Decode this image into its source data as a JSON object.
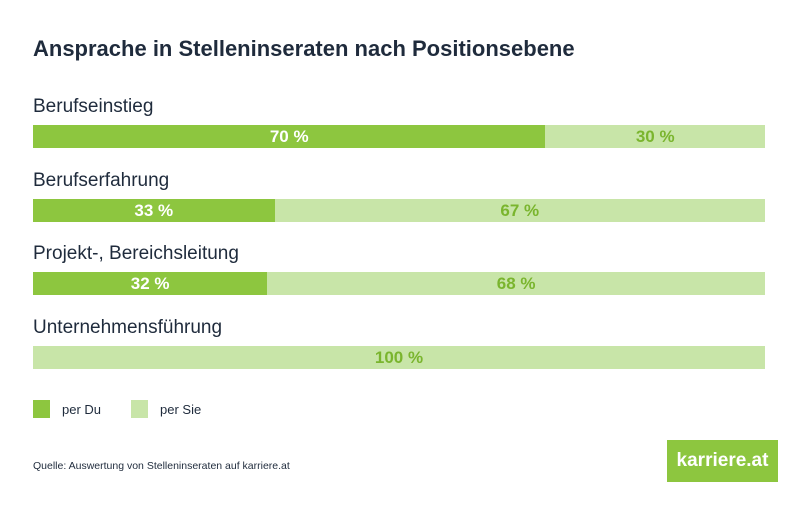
{
  "colors": {
    "per_du": "#8dc63f",
    "per_sie": "#c8e5a8",
    "label_on_dark": "#ffffff",
    "label_on_light": "#7ab52e"
  },
  "chart_data": {
    "type": "bar",
    "orientation": "horizontal",
    "stacked": true,
    "title": "Ansprache in Stelleninseraten nach Positionsebene",
    "categories": [
      "Berufseinstieg",
      "Berufserfahrung",
      "Projekt-, Bereichsleitung",
      "Unternehmensführung"
    ],
    "series": [
      {
        "name": "per Du",
        "values": [
          70,
          33,
          32,
          0
        ]
      },
      {
        "name": "per Sie",
        "values": [
          30,
          67,
          68,
          100
        ]
      }
    ],
    "unit": "%",
    "xlim": [
      0,
      100
    ],
    "grid": false,
    "legend": "bottom-left"
  },
  "source": "Quelle: Auswertung von Stelleninseraten auf karriere.at",
  "logo": "karriere.at"
}
